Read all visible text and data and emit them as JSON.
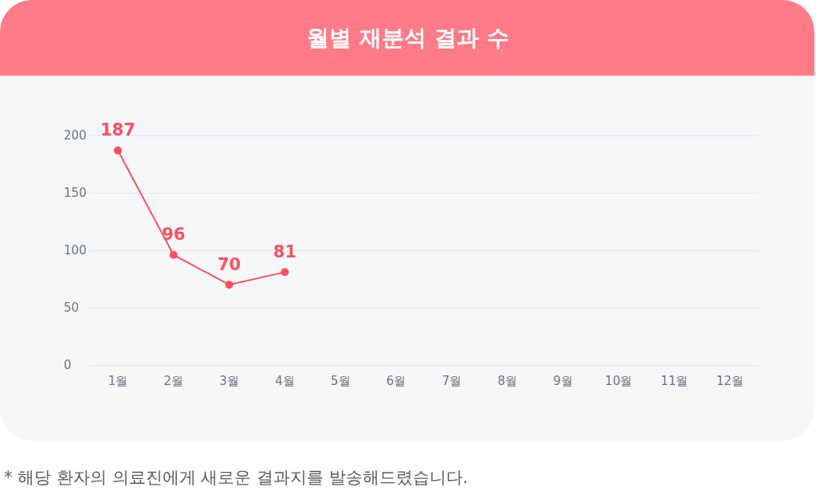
{
  "chart_data": {
    "type": "line",
    "title": "월별 재분석 결과 수",
    "categories": [
      "1월",
      "2월",
      "3월",
      "4월",
      "5월",
      "6월",
      "7월",
      "8월",
      "9월",
      "10월",
      "11월",
      "12월"
    ],
    "values": [
      187,
      96,
      70,
      81,
      null,
      null,
      null,
      null,
      null,
      null,
      null,
      null
    ],
    "color": "#ff4f5f",
    "ylim": [
      0,
      200
    ],
    "yticks": [
      0,
      50,
      100,
      150,
      200
    ],
    "grid": "y",
    "marker": "circle",
    "line_style": "solid",
    "data_labels": true,
    "annotations": [
      "* 해당 환자의 의료진에게 새로운 결과지를 발송해드렸습니다."
    ]
  }
}
